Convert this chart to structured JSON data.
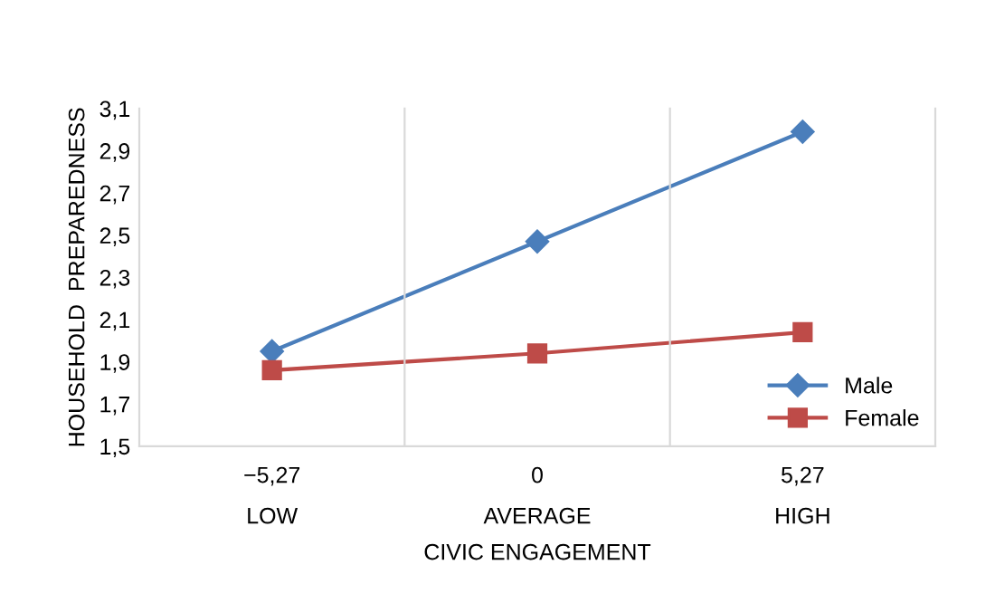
{
  "chart_data": {
    "type": "line",
    "xlabel": "CIVIC ENGAGEMENT",
    "ylabel": "HOUSEHOLD  PREPAREDNESS",
    "categories": [
      "−5,27\nLOW",
      "0\nAVERAGE",
      "5,27\nHIGH"
    ],
    "series": [
      {
        "name": "Male",
        "color": "#4a7ebb",
        "marker": "diamond",
        "values": [
          1.95,
          2.47,
          2.99
        ]
      },
      {
        "name": "Female",
        "color": "#be4b48",
        "marker": "square",
        "values": [
          1.86,
          1.94,
          2.04
        ]
      }
    ],
    "ylim": [
      1.5,
      3.1
    ],
    "yticks": [
      {
        "value": 1.5,
        "label": "1,5"
      },
      {
        "value": 1.7,
        "label": "1,7"
      },
      {
        "value": 1.9,
        "label": "1,9"
      },
      {
        "value": 2.1,
        "label": "2,1"
      },
      {
        "value": 2.3,
        "label": "2,3"
      },
      {
        "value": 2.5,
        "label": "2,5"
      },
      {
        "value": 2.7,
        "label": "2,7"
      },
      {
        "value": 2.9,
        "label": "2,9"
      },
      {
        "value": 3.1,
        "label": "3,1"
      }
    ],
    "grid": "x",
    "legend": "bottom right"
  }
}
